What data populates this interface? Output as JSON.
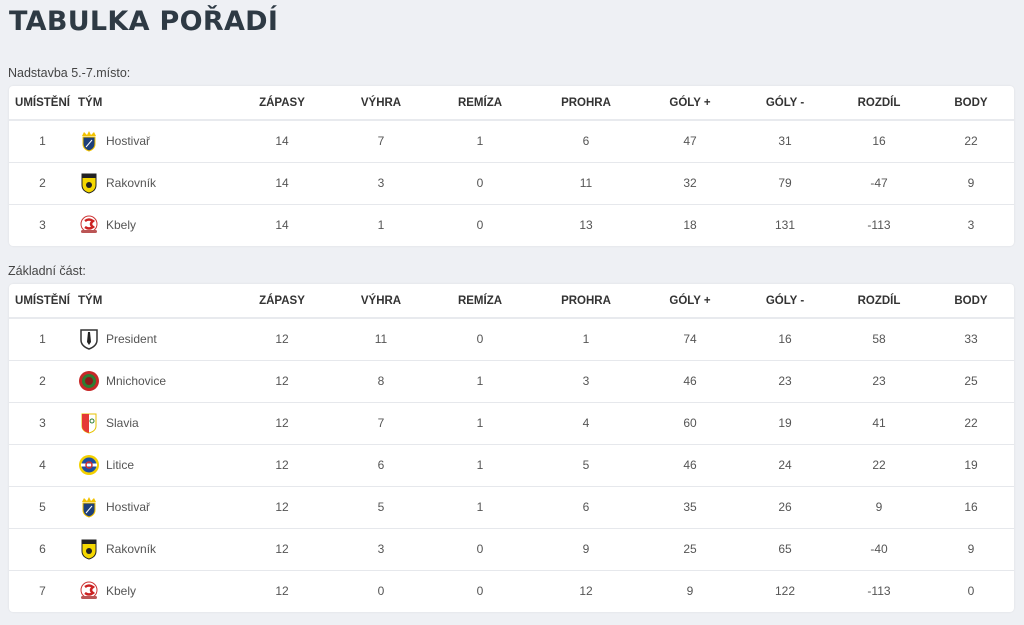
{
  "title": "TABULKA POŘADÍ",
  "columns": [
    "UMÍSTĚNÍ",
    "TÝM",
    "ZÁPASY",
    "VÝHRA",
    "REMÍZA",
    "PROHRA",
    "GÓLY +",
    "GÓLY -",
    "ROZDÍL",
    "BODY"
  ],
  "tables": [
    {
      "caption": "Nadstavba 5.-7.místo:",
      "rows": [
        {
          "pos": "1",
          "team": "Hostivař",
          "logo": "hostivar-logo-icon",
          "zapasy": "14",
          "vyhra": "7",
          "remiza": "1",
          "prohra": "6",
          "goly_plus": "47",
          "goly_minus": "31",
          "rozdil": "16",
          "body": "22"
        },
        {
          "pos": "2",
          "team": "Rakovník",
          "logo": "rakovnik-logo-icon",
          "zapasy": "14",
          "vyhra": "3",
          "remiza": "0",
          "prohra": "11",
          "goly_plus": "32",
          "goly_minus": "79",
          "rozdil": "-47",
          "body": "9"
        },
        {
          "pos": "3",
          "team": "Kbely",
          "logo": "kbely-logo-icon",
          "zapasy": "14",
          "vyhra": "1",
          "remiza": "0",
          "prohra": "13",
          "goly_plus": "18",
          "goly_minus": "131",
          "rozdil": "-113",
          "body": "3"
        }
      ]
    },
    {
      "caption": "Základní část:",
      "rows": [
        {
          "pos": "1",
          "team": "President",
          "logo": "president-logo-icon",
          "zapasy": "12",
          "vyhra": "11",
          "remiza": "0",
          "prohra": "1",
          "goly_plus": "74",
          "goly_minus": "16",
          "rozdil": "58",
          "body": "33"
        },
        {
          "pos": "2",
          "team": "Mnichovice",
          "logo": "mnichovice-logo-icon",
          "zapasy": "12",
          "vyhra": "8",
          "remiza": "1",
          "prohra": "3",
          "goly_plus": "46",
          "goly_minus": "23",
          "rozdil": "23",
          "body": "25"
        },
        {
          "pos": "3",
          "team": "Slavia",
          "logo": "slavia-logo-icon",
          "zapasy": "12",
          "vyhra": "7",
          "remiza": "1",
          "prohra": "4",
          "goly_plus": "60",
          "goly_minus": "19",
          "rozdil": "41",
          "body": "22"
        },
        {
          "pos": "4",
          "team": "Litice",
          "logo": "litice-logo-icon",
          "zapasy": "12",
          "vyhra": "6",
          "remiza": "1",
          "prohra": "5",
          "goly_plus": "46",
          "goly_minus": "24",
          "rozdil": "22",
          "body": "19"
        },
        {
          "pos": "5",
          "team": "Hostivař",
          "logo": "hostivar-logo-icon",
          "zapasy": "12",
          "vyhra": "5",
          "remiza": "1",
          "prohra": "6",
          "goly_plus": "35",
          "goly_minus": "26",
          "rozdil": "9",
          "body": "16"
        },
        {
          "pos": "6",
          "team": "Rakovník",
          "logo": "rakovnik-logo-icon",
          "zapasy": "12",
          "vyhra": "3",
          "remiza": "0",
          "prohra": "9",
          "goly_plus": "25",
          "goly_minus": "65",
          "rozdil": "-40",
          "body": "9"
        },
        {
          "pos": "7",
          "team": "Kbely",
          "logo": "kbely-logo-icon",
          "zapasy": "12",
          "vyhra": "0",
          "remiza": "0",
          "prohra": "12",
          "goly_plus": "9",
          "goly_minus": "122",
          "rozdil": "-113",
          "body": "0"
        }
      ]
    }
  ]
}
